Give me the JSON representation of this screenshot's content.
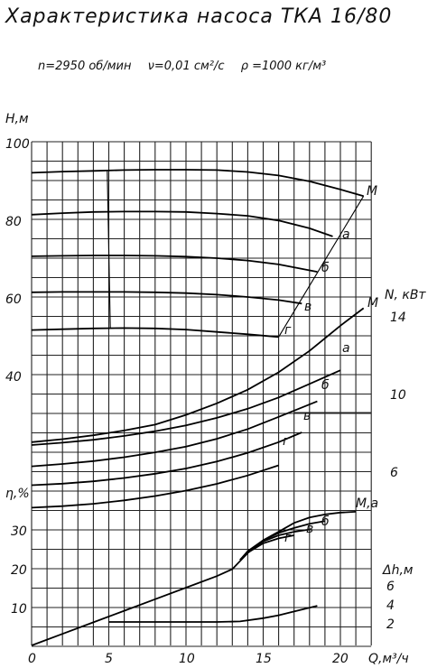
{
  "title": "Характеристика насоса ТКА 16/80",
  "params": [
    "n=2950 об/мин",
    "ν=0,01 см²/с",
    "ρ =1000 кг/м³"
  ],
  "chart_data": {
    "type": "line",
    "x": {
      "label": "Q,м³/ч",
      "ticks": [
        "0",
        "5",
        "10",
        "15",
        "20"
      ],
      "range": [
        0,
        22
      ]
    },
    "axes": {
      "H": {
        "label": "H,м",
        "ticks": [
          "100",
          "80",
          "60",
          "40"
        ],
        "range": [
          20,
          100
        ]
      },
      "N": {
        "label": "N, кВт",
        "ticks": [
          "14",
          "10",
          "6"
        ],
        "range": [
          4,
          16
        ]
      },
      "eta": {
        "label": "η,%",
        "ticks": [
          "30",
          "20",
          "10"
        ],
        "range": [
          0,
          40
        ]
      },
      "dh": {
        "label": "Δh,м",
        "ticks": [
          "6",
          "4",
          "2"
        ],
        "range": [
          0,
          8
        ]
      }
    },
    "curve_labels": [
      "М",
      "а",
      "б",
      "в",
      "г",
      "М",
      "а",
      "б",
      "в",
      "г",
      "М,а",
      "б",
      "в",
      "г"
    ],
    "series": [
      {
        "name": "М",
        "axis": "H",
        "x": [
          0,
          2,
          4,
          6,
          8,
          10,
          12,
          14,
          16,
          18,
          20,
          21.5
        ],
        "y": [
          92,
          92.3,
          92.5,
          92.7,
          92.8,
          92.8,
          92.7,
          92.2,
          91.3,
          89.8,
          87.7,
          86
        ]
      },
      {
        "name": "а",
        "axis": "H",
        "x": [
          0,
          2,
          4,
          6,
          8,
          10,
          12,
          14,
          16,
          18,
          19.5
        ],
        "y": [
          81.2,
          81.6,
          81.9,
          82,
          82,
          81.9,
          81.5,
          80.9,
          79.7,
          77.7,
          75.6
        ]
      },
      {
        "name": "б",
        "axis": "H",
        "x": [
          0,
          2,
          4,
          6,
          8,
          10,
          12,
          14,
          16,
          18.5
        ],
        "y": [
          70.5,
          70.6,
          70.7,
          70.7,
          70.6,
          70.4,
          70.0,
          69.4,
          68.4,
          66.5
        ]
      },
      {
        "name": "в",
        "axis": "H",
        "x": [
          0,
          2,
          4,
          6,
          8,
          10,
          12,
          14,
          16,
          17.5
        ],
        "y": [
          61.2,
          61.3,
          61.3,
          61.3,
          61.2,
          61.0,
          60.6,
          60.0,
          59.2,
          58.3
        ]
      },
      {
        "name": "г",
        "axis": "H",
        "x": [
          0,
          2,
          4,
          6,
          8,
          10,
          12,
          14,
          16
        ],
        "y": [
          51.5,
          51.7,
          51.9,
          52.0,
          51.9,
          51.6,
          51.0,
          50.4,
          49.7
        ]
      },
      {
        "name": "М",
        "axis": "N",
        "x": [
          0,
          2,
          4,
          6,
          8,
          10,
          12,
          14,
          16,
          18,
          20,
          21.5
        ],
        "y": [
          7.5,
          7.65,
          7.85,
          8.1,
          8.4,
          8.9,
          9.5,
          10.2,
          11.1,
          12.2,
          13.5,
          14.4
        ]
      },
      {
        "name": "а",
        "axis": "N",
        "x": [
          0,
          2,
          4,
          6,
          8,
          10,
          12,
          14,
          16,
          18,
          20
        ],
        "y": [
          7.35,
          7.47,
          7.62,
          7.82,
          8.06,
          8.36,
          8.75,
          9.22,
          9.8,
          10.5,
          11.2
        ]
      },
      {
        "name": "б",
        "axis": "N",
        "x": [
          0,
          2,
          4,
          6,
          8,
          10,
          12,
          14,
          16,
          18.5
        ],
        "y": [
          6.25,
          6.37,
          6.52,
          6.72,
          6.97,
          7.27,
          7.67,
          8.17,
          8.8,
          9.6
        ]
      },
      {
        "name": "в",
        "axis": "N",
        "x": [
          0,
          2,
          4,
          6,
          8,
          10,
          12,
          14,
          16,
          17.5
        ],
        "y": [
          5.28,
          5.36,
          5.48,
          5.65,
          5.87,
          6.14,
          6.5,
          6.95,
          7.5,
          8.0
        ]
      },
      {
        "name": "г",
        "axis": "N",
        "x": [
          0,
          2,
          4,
          6,
          8,
          10,
          12,
          14,
          16
        ],
        "y": [
          4.12,
          4.2,
          4.32,
          4.5,
          4.72,
          5.0,
          5.35,
          5.78,
          6.3
        ]
      },
      {
        "name": "М,а",
        "axis": "eta",
        "x": [
          0,
          2,
          4,
          6,
          8,
          10,
          12,
          13,
          14,
          15,
          16,
          17,
          18,
          19,
          20,
          21
        ],
        "y": [
          0,
          3,
          6,
          9,
          12,
          15,
          18,
          19.8,
          24,
          27.3,
          29.5,
          31.8,
          33.2,
          34,
          34.5,
          34.7
        ]
      },
      {
        "name": "б",
        "axis": "eta",
        "x": [
          13.5,
          14,
          15,
          16,
          17,
          18,
          19
        ],
        "y": [
          22.2,
          24.5,
          27.3,
          29.2,
          30.5,
          31.6,
          32.3
        ]
      },
      {
        "name": "в",
        "axis": "eta",
        "x": [
          13.5,
          14,
          15,
          16,
          17,
          18
        ],
        "y": [
          22.2,
          24.3,
          27,
          28.6,
          29.5,
          30.1
        ]
      },
      {
        "name": "г",
        "axis": "eta",
        "x": [
          13.5,
          14,
          15,
          16,
          17
        ],
        "y": [
          22.2,
          24.1,
          26.5,
          27.8,
          28.6
        ]
      },
      {
        "name": "Δh",
        "axis": "dh",
        "x": [
          5,
          8,
          10,
          12,
          13.5,
          15,
          16,
          17,
          18.5
        ],
        "y": [
          2.1,
          2.1,
          2.1,
          2.1,
          2.15,
          2.5,
          2.8,
          3.2,
          3.8
        ]
      }
    ],
    "boundary_lines": [
      {
        "axis": "H",
        "x": [
          16,
          21.5
        ],
        "y": [
          49.7,
          86
        ]
      },
      {
        "axis": "H",
        "x": [
          4.9,
          5.1
        ],
        "y": [
          92.4,
          51.8
        ]
      }
    ],
    "grid": true
  }
}
